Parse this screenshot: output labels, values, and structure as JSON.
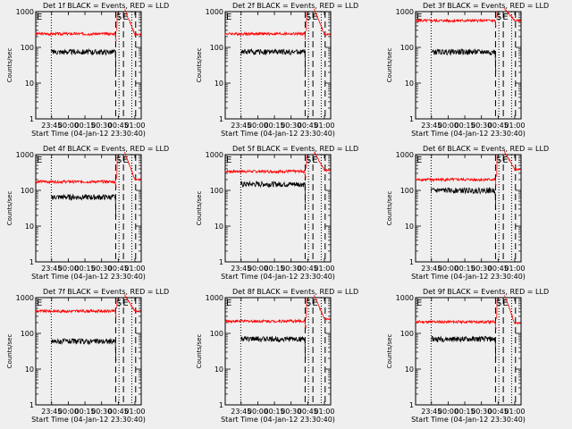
{
  "figure": {
    "background": "#efefef",
    "colors": {
      "events": "#000000",
      "lld": "#ff0000",
      "frame": "#000000"
    },
    "series_names": [
      "Events",
      "LLD"
    ]
  },
  "chart_data": [
    {
      "type": "line",
      "title": "Det 1f BLACK = Events, RED = LLD",
      "ylabel": "Counts/sec",
      "xlabel": "Start Time (04-Jan-12 23:30:40)",
      "y_scale": "log",
      "ylim": [
        1,
        1000
      ],
      "y_ticks": [
        "1",
        "10",
        "100",
        "1000"
      ],
      "xlim_minutes": [
        0,
        95
      ],
      "x_tick_labels": [
        "23:45",
        "00:00",
        "00:15",
        "00:30",
        "00:45",
        "01:00"
      ],
      "x_tick_minutes": [
        14.33,
        29.33,
        44.33,
        59.33,
        74.33,
        89.33
      ],
      "marker_labels": [
        "S",
        "E"
      ],
      "dotted_minutes": [
        14,
        75,
        86.5
      ],
      "dashed_minutes": [
        72,
        79,
        90
      ],
      "gap_minutes": [
        73,
        80
      ],
      "events_level": 75,
      "lld_level": 240,
      "lld_end_level": 230
    },
    {
      "type": "line",
      "title": "Det 2f BLACK = Events, RED = LLD",
      "ylabel": "Counts/sec",
      "xlabel": "Start Time (04-Jan-12 23:30:40)",
      "y_scale": "log",
      "ylim": [
        1,
        1000
      ],
      "y_ticks": [
        "1",
        "10",
        "100",
        "1000"
      ],
      "xlim_minutes": [
        0,
        95
      ],
      "x_tick_labels": [
        "23:45",
        "00:00",
        "00:15",
        "00:30",
        "00:45",
        "01:00"
      ],
      "x_tick_minutes": [
        14.33,
        29.33,
        44.33,
        59.33,
        74.33,
        89.33
      ],
      "marker_labels": [
        "S",
        "E"
      ],
      "dotted_minutes": [
        14,
        75,
        86.5
      ],
      "dashed_minutes": [
        72,
        79,
        90
      ],
      "gap_minutes": [
        73,
        80
      ],
      "events_level": 75,
      "lld_level": 240,
      "lld_end_level": 230
    },
    {
      "type": "line",
      "title": "Det 3f BLACK = Events, RED = LLD",
      "ylabel": "Counts/sec",
      "xlabel": "Start Time (04-Jan-12 23:30:40)",
      "y_scale": "log",
      "ylim": [
        1,
        1000
      ],
      "y_ticks": [
        "1",
        "10",
        "100",
        "1000"
      ],
      "xlim_minutes": [
        0,
        95
      ],
      "x_tick_labels": [
        "23:45",
        "00:00",
        "00:15",
        "00:30",
        "00:45",
        "01:00"
      ],
      "x_tick_minutes": [
        14.33,
        29.33,
        44.33,
        59.33,
        74.33,
        89.33
      ],
      "marker_labels": [
        "S",
        "E"
      ],
      "dotted_minutes": [
        14,
        75,
        86.5
      ],
      "dashed_minutes": [
        72,
        79,
        90
      ],
      "gap_minutes": [
        73,
        80
      ],
      "events_level": 75,
      "lld_level": 560,
      "lld_end_level": 560
    },
    {
      "type": "line",
      "title": "Det 4f BLACK = Events, RED = LLD",
      "ylabel": "Counts/sec",
      "xlabel": "Start Time (04-Jan-12 23:30:40)",
      "y_scale": "log",
      "ylim": [
        1,
        1000
      ],
      "y_ticks": [
        "1",
        "10",
        "100",
        "1000"
      ],
      "xlim_minutes": [
        0,
        95
      ],
      "x_tick_labels": [
        "23:45",
        "00:00",
        "00:15",
        "00:30",
        "00:45",
        "01:00"
      ],
      "x_tick_minutes": [
        14.33,
        29.33,
        44.33,
        59.33,
        74.33,
        89.33
      ],
      "marker_labels": [
        "S",
        "E"
      ],
      "dotted_minutes": [
        14,
        75,
        86.5
      ],
      "dashed_minutes": [
        72,
        79,
        90
      ],
      "gap_minutes": [
        73,
        80
      ],
      "events_level": 65,
      "lld_level": 175,
      "lld_end_level": 200
    },
    {
      "type": "line",
      "title": "Det 5f BLACK = Events, RED = LLD",
      "ylabel": "Counts/sec",
      "xlabel": "Start Time (04-Jan-12 23:30:40)",
      "y_scale": "log",
      "ylim": [
        1,
        1000
      ],
      "y_ticks": [
        "1",
        "10",
        "100",
        "1000"
      ],
      "xlim_minutes": [
        0,
        95
      ],
      "x_tick_labels": [
        "23:45",
        "00:00",
        "00:15",
        "00:30",
        "00:45",
        "01:00"
      ],
      "x_tick_minutes": [
        14.33,
        29.33,
        44.33,
        59.33,
        74.33,
        89.33
      ],
      "marker_labels": [
        "S",
        "E"
      ],
      "dotted_minutes": [
        14,
        75,
        86.5
      ],
      "dashed_minutes": [
        72,
        79,
        90
      ],
      "gap_minutes": [
        73,
        80
      ],
      "events_level": 150,
      "lld_level": 340,
      "lld_end_level": 370
    },
    {
      "type": "line",
      "title": "Det 6f BLACK = Events, RED = LLD",
      "ylabel": "Counts/sec",
      "xlabel": "Start Time (04-Jan-12 23:30:40)",
      "y_scale": "log",
      "ylim": [
        1,
        1000
      ],
      "y_ticks": [
        "1",
        "10",
        "100",
        "1000"
      ],
      "xlim_minutes": [
        0,
        95
      ],
      "x_tick_labels": [
        "23:45",
        "00:00",
        "00:15",
        "00:30",
        "00:45",
        "01:00"
      ],
      "x_tick_minutes": [
        14.33,
        29.33,
        44.33,
        59.33,
        74.33,
        89.33
      ],
      "marker_labels": [
        "S",
        "E"
      ],
      "dotted_minutes": [
        14,
        75,
        86.5
      ],
      "dashed_minutes": [
        72,
        79,
        90
      ],
      "gap_minutes": [
        73,
        80
      ],
      "events_level": 100,
      "lld_level": 200,
      "lld_end_level": 380
    },
    {
      "type": "line",
      "title": "Det 7f BLACK = Events, RED = LLD",
      "ylabel": "Counts/sec",
      "xlabel": "Start Time (04-Jan-12 23:30:40)",
      "y_scale": "log",
      "ylim": [
        1,
        1000
      ],
      "y_ticks": [
        "1",
        "10",
        "100",
        "1000"
      ],
      "xlim_minutes": [
        0,
        95
      ],
      "x_tick_labels": [
        "23:45",
        "00:00",
        "00:15",
        "00:30",
        "00:45",
        "01:00"
      ],
      "x_tick_minutes": [
        14.33,
        29.33,
        44.33,
        59.33,
        74.33,
        89.33
      ],
      "marker_labels": [
        "S",
        "E"
      ],
      "dotted_minutes": [
        14,
        75,
        86.5
      ],
      "dashed_minutes": [
        72,
        79,
        90
      ],
      "gap_minutes": [
        73,
        80
      ],
      "events_level": 60,
      "lld_level": 420,
      "lld_end_level": 420
    },
    {
      "type": "line",
      "title": "Det 8f BLACK = Events, RED = LLD",
      "ylabel": "Counts/sec",
      "xlabel": "Start Time (04-Jan-12 23:30:40)",
      "y_scale": "log",
      "ylim": [
        1,
        1000
      ],
      "y_ticks": [
        "1",
        "10",
        "100",
        "1000"
      ],
      "xlim_minutes": [
        0,
        95
      ],
      "x_tick_labels": [
        "23:45",
        "00:00",
        "00:15",
        "00:30",
        "00:45",
        "01:00"
      ],
      "x_tick_minutes": [
        14.33,
        29.33,
        44.33,
        59.33,
        74.33,
        89.33
      ],
      "marker_labels": [
        "S",
        "E"
      ],
      "dotted_minutes": [
        14,
        75,
        86.5
      ],
      "dashed_minutes": [
        72,
        79,
        90
      ],
      "gap_minutes": [
        73,
        80
      ],
      "events_level": 70,
      "lld_level": 220,
      "lld_end_level": 250
    },
    {
      "type": "line",
      "title": "Det 9f BLACK = Events, RED = LLD",
      "ylabel": "Counts/sec",
      "xlabel": "Start Time (04-Jan-12 23:30:40)",
      "y_scale": "log",
      "ylim": [
        1,
        1000
      ],
      "y_ticks": [
        "1",
        "10",
        "100",
        "1000"
      ],
      "xlim_minutes": [
        0,
        95
      ],
      "x_tick_labels": [
        "23:45",
        "00:00",
        "00:15",
        "00:30",
        "00:45",
        "01:00"
      ],
      "x_tick_minutes": [
        14.33,
        29.33,
        44.33,
        59.33,
        74.33,
        89.33
      ],
      "marker_labels": [
        "S",
        "E"
      ],
      "dotted_minutes": [
        14,
        75,
        86.5
      ],
      "dashed_minutes": [
        72,
        79,
        90
      ],
      "gap_minutes": [
        73,
        80
      ],
      "events_level": 70,
      "lld_level": 210,
      "lld_end_level": 190
    }
  ]
}
